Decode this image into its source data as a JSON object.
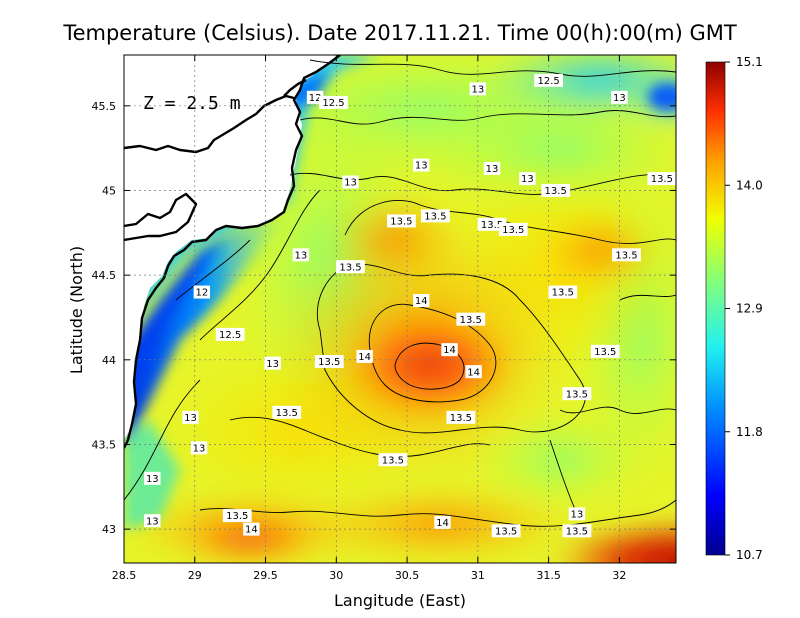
{
  "title": "Temperature (Celsius). Date 2017.11.21. Time 00(h):00(m)  GMT",
  "depth_label": "Z = 2.5 m",
  "x_axis": {
    "label": "Langitude (East)",
    "ticks": [
      "28.5",
      "29",
      "29.5",
      "30",
      "30.5",
      "31",
      "31.5",
      "32"
    ]
  },
  "y_axis": {
    "label": "Latitude (North)",
    "ticks": [
      "43",
      "43.5",
      "44",
      "44.5",
      "45",
      "45.5"
    ]
  },
  "colorbar": {
    "ticks": [
      "15.1",
      "14.0",
      "12.9",
      "11.8",
      "10.7"
    ]
  },
  "chart_data": {
    "type": "heatmap",
    "title": "Temperature (Celsius). Date 2017.11.21. Time 00(h):00(m)  GMT",
    "xlabel": "Langitude (East)",
    "ylabel": "Latitude (North)",
    "xlim": [
      28.5,
      32.4
    ],
    "ylim": [
      42.8,
      45.8
    ],
    "color_range": [
      10.7,
      15.1
    ],
    "colormap": [
      "#00008f",
      "#0050ff",
      "#00d0ff",
      "#70ffa0",
      "#f0ff10",
      "#ffa000",
      "#ff3000",
      "#8f0000"
    ],
    "grid": true,
    "annotation": "Z = 2.5 m",
    "features": [
      {
        "name": "warm core",
        "lon": 30.55,
        "lat": 44.0,
        "value": 14.4
      },
      {
        "name": "warm band south-west",
        "lon": 29.3,
        "lat": 42.95,
        "value": 14.0
      },
      {
        "name": "warm corner south-east",
        "lon": 32.3,
        "lat": 42.85,
        "value": 15.0
      },
      {
        "name": "cold coastal strip",
        "lon": 28.9,
        "lat": 44.5,
        "value": 11.8
      },
      {
        "name": "cold patch north-east",
        "lon": 32.3,
        "lat": 45.6,
        "value": 11.9
      }
    ],
    "contour_labels": [
      {
        "text": "12.5",
        "lon": 31.5,
        "lat": 45.65
      },
      {
        "text": "13",
        "lon": 31.0,
        "lat": 45.6
      },
      {
        "text": "13",
        "lon": 32.0,
        "lat": 45.55
      },
      {
        "text": "12",
        "lon": 29.85,
        "lat": 45.55
      },
      {
        "text": "12.5",
        "lon": 29.98,
        "lat": 45.52
      },
      {
        "text": "13",
        "lon": 30.6,
        "lat": 45.15
      },
      {
        "text": "13",
        "lon": 31.1,
        "lat": 45.13
      },
      {
        "text": "13",
        "lon": 31.35,
        "lat": 45.07
      },
      {
        "text": "13",
        "lon": 30.1,
        "lat": 45.05
      },
      {
        "text": "13.5",
        "lon": 32.3,
        "lat": 45.07
      },
      {
        "text": "13.5",
        "lon": 31.55,
        "lat": 45.0
      },
      {
        "text": "13.5",
        "lon": 30.7,
        "lat": 44.85
      },
      {
        "text": "13.5",
        "lon": 30.46,
        "lat": 44.82
      },
      {
        "text": "13.5",
        "lon": 31.1,
        "lat": 44.8
      },
      {
        "text": "13.5",
        "lon": 31.25,
        "lat": 44.77
      },
      {
        "text": "13",
        "lon": 29.75,
        "lat": 44.62
      },
      {
        "text": "13.5",
        "lon": 30.1,
        "lat": 44.55
      },
      {
        "text": "13.5",
        "lon": 32.05,
        "lat": 44.62
      },
      {
        "text": "14",
        "lon": 30.6,
        "lat": 44.35
      },
      {
        "text": "13.5",
        "lon": 31.6,
        "lat": 44.4
      },
      {
        "text": "12",
        "lon": 29.05,
        "lat": 44.4
      },
      {
        "text": "13.5",
        "lon": 30.95,
        "lat": 44.24
      },
      {
        "text": "12.5",
        "lon": 29.25,
        "lat": 44.15
      },
      {
        "text": "14",
        "lon": 30.8,
        "lat": 44.06
      },
      {
        "text": "13.5",
        "lon": 31.9,
        "lat": 44.05
      },
      {
        "text": "13",
        "lon": 29.55,
        "lat": 43.98
      },
      {
        "text": "13.5",
        "lon": 29.95,
        "lat": 43.99
      },
      {
        "text": "14",
        "lon": 30.2,
        "lat": 44.02
      },
      {
        "text": "14",
        "lon": 30.97,
        "lat": 43.93
      },
      {
        "text": "13.5",
        "lon": 31.7,
        "lat": 43.8
      },
      {
        "text": "13.5",
        "lon": 29.65,
        "lat": 43.69
      },
      {
        "text": "13.5",
        "lon": 30.88,
        "lat": 43.66
      },
      {
        "text": "13",
        "lon": 28.97,
        "lat": 43.66
      },
      {
        "text": "13",
        "lon": 29.03,
        "lat": 43.48
      },
      {
        "text": "13.5",
        "lon": 30.4,
        "lat": 43.41
      },
      {
        "text": "13",
        "lon": 28.7,
        "lat": 43.3
      },
      {
        "text": "13",
        "lon": 31.7,
        "lat": 43.09
      },
      {
        "text": "13.5",
        "lon": 29.3,
        "lat": 43.08
      },
      {
        "text": "13",
        "lon": 28.7,
        "lat": 43.05
      },
      {
        "text": "14",
        "lon": 30.75,
        "lat": 43.04
      },
      {
        "text": "14",
        "lon": 29.4,
        "lat": 43.0
      },
      {
        "text": "13.5",
        "lon": 31.2,
        "lat": 42.99
      },
      {
        "text": "13.5",
        "lon": 31.7,
        "lat": 42.99
      }
    ]
  }
}
